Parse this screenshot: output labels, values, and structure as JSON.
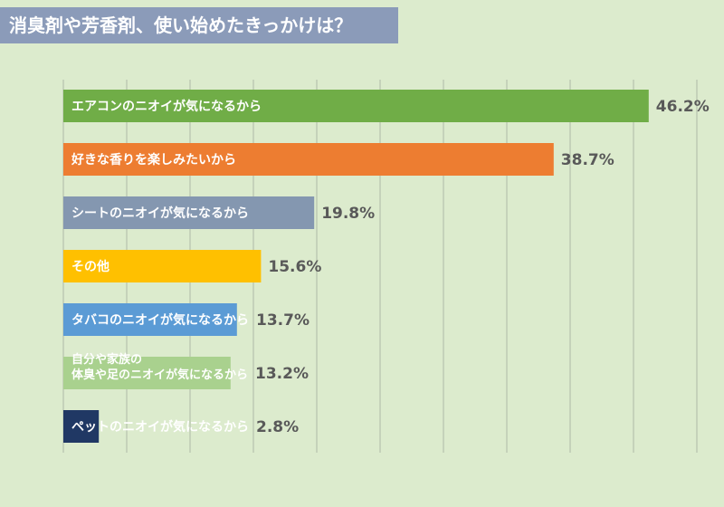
{
  "title": "消臭剤や芳香剤、使い始めたきっかけは？",
  "colors": {
    "background": "#dcebcd",
    "title_bg": "#8b9bb9",
    "grid": "#aeb8a6",
    "value_text": "#595959"
  },
  "chart_data": {
    "type": "bar",
    "orientation": "horizontal",
    "xlim": [
      0,
      50
    ],
    "grid": true,
    "value_suffix": "%",
    "categories": [
      [
        "エアコンのニオイが気になるから"
      ],
      [
        "好きな香りを楽しみたいから"
      ],
      [
        "シートのニオイが気になるから"
      ],
      [
        "その他"
      ],
      [
        "タバコのニオイが気になるから"
      ],
      [
        "自分や家族の",
        "体臭や足のニオイが気になるから"
      ],
      [
        "ペットのニオイが気になるから"
      ]
    ],
    "values": [
      46.2,
      38.7,
      19.8,
      15.6,
      13.7,
      13.2,
      2.8
    ],
    "value_labels": [
      "46.2%",
      "38.7%",
      "19.8%",
      "15.6%",
      "13.7%",
      "13.2%",
      "2.8%"
    ],
    "bar_colors": [
      "#70ad47",
      "#ed7d31",
      "#8497b0",
      "#ffc000",
      "#5b9bd5",
      "#a9d18e",
      "#203864"
    ]
  }
}
